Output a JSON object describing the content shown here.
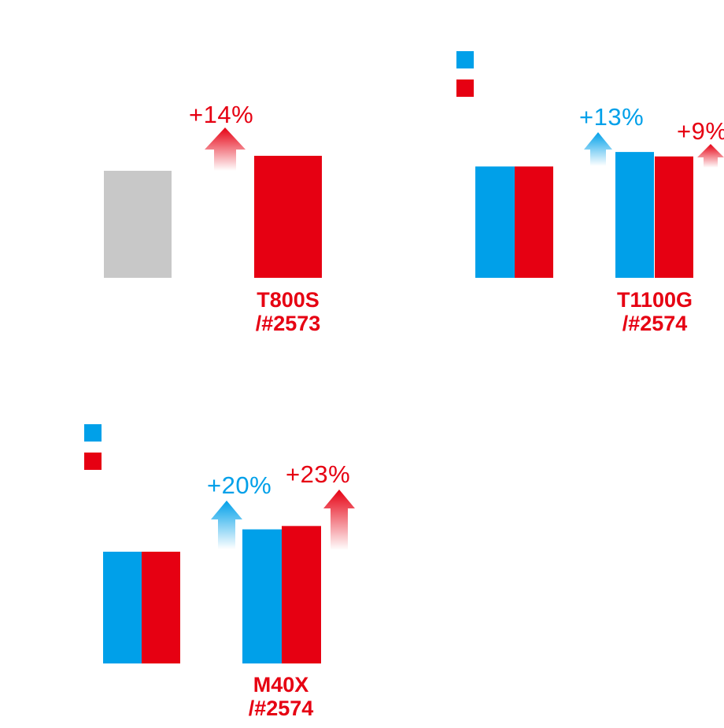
{
  "colors": {
    "baseline_gray": "#c8c8c8",
    "blue": "#00a0e9",
    "red": "#e60012",
    "white": "#ffffff"
  },
  "chart_data": [
    {
      "type": "bar",
      "categories": [
        "",
        "T800S\n/#2573"
      ],
      "category_labels": [
        [],
        [
          "T800S",
          "/#2573"
        ]
      ],
      "series": [
        {
          "values": [
            100,
            114
          ],
          "colors": [
            "#c8c8c8",
            "#e60012"
          ]
        }
      ],
      "annotations": [
        {
          "text": "+14%",
          "color": "#e60012",
          "arrow": "up-red"
        }
      ],
      "legend": null
    },
    {
      "type": "bar",
      "categories": [
        "",
        "T1100G\n/#2574"
      ],
      "category_labels": [
        [],
        [
          "T1100G",
          "/#2574"
        ]
      ],
      "series": [
        {
          "values": [
            100,
            113
          ],
          "color": "#00a0e9"
        },
        {
          "values": [
            100,
            109
          ],
          "color": "#e60012"
        }
      ],
      "annotations": [
        {
          "text": "+13%",
          "color": "#00a0e9",
          "arrow": "up-blue"
        },
        {
          "text": "+9%",
          "color": "#e60012",
          "arrow": "up-red"
        }
      ],
      "legend": {
        "placement": "top-left",
        "swatches": [
          "#00a0e9",
          "#e60012"
        ]
      }
    },
    {
      "type": "bar",
      "categories": [
        "",
        "M40X\n/#2574"
      ],
      "category_labels": [
        [],
        [
          "M40X",
          "/#2574"
        ]
      ],
      "series": [
        {
          "values": [
            100,
            120
          ],
          "color": "#00a0e9"
        },
        {
          "values": [
            100,
            123
          ],
          "color": "#e60012"
        }
      ],
      "annotations": [
        {
          "text": "+20%",
          "color": "#00a0e9",
          "arrow": "up-blue"
        },
        {
          "text": "+23%",
          "color": "#e60012",
          "arrow": "up-red"
        }
      ],
      "legend": {
        "placement": "top-left",
        "swatches": [
          "#00a0e9",
          "#e60012"
        ]
      }
    }
  ]
}
